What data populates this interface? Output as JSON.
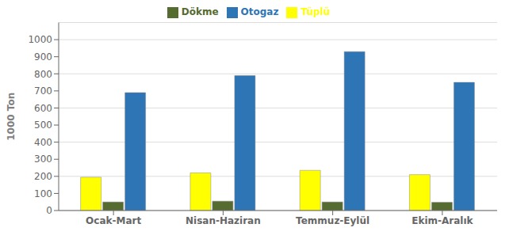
{
  "chart_data": {
    "type": "bar",
    "categories": [
      "Ocak-Mart",
      "Nisan-Haziran",
      "Temmuz-Eylül",
      "Ekim-Aralık"
    ],
    "series": [
      {
        "name": "Tüplü",
        "color": "#FFFF00",
        "values": [
          195,
          220,
          235,
          210
        ]
      },
      {
        "name": "Dökme",
        "color": "#556B2F",
        "values": [
          50,
          55,
          50,
          48
        ]
      },
      {
        "name": "Otogaz",
        "color": "#2E75B6",
        "values": [
          690,
          790,
          930,
          750
        ]
      }
    ],
    "ylabel": "1000 Ton",
    "ylim": [
      0,
      1100
    ],
    "yticks": [
      0,
      100,
      200,
      300,
      400,
      500,
      600,
      700,
      800,
      900,
      1000
    ],
    "grid": true,
    "legend": "top"
  }
}
